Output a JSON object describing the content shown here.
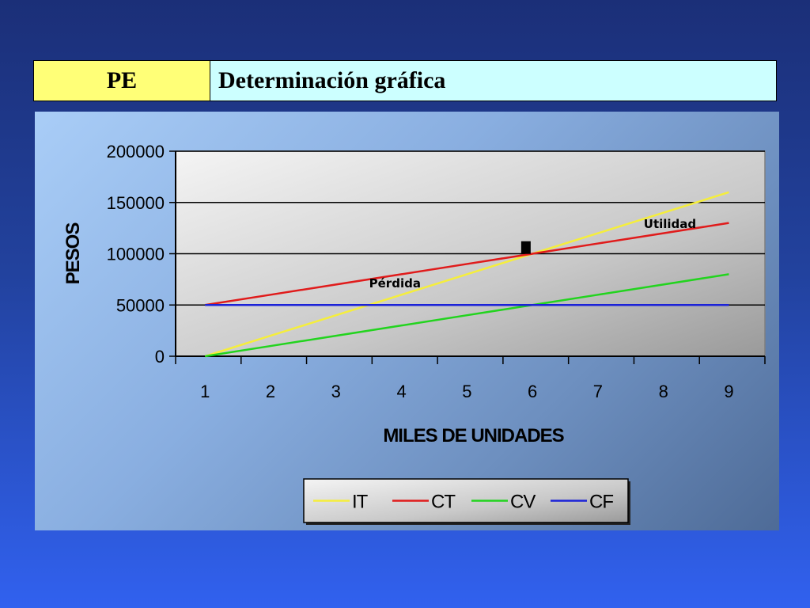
{
  "header": {
    "label": "PE",
    "title": "Determinación gráfica"
  },
  "chart_data": {
    "type": "line",
    "x": [
      1,
      2,
      3,
      4,
      5,
      6,
      7,
      8,
      9
    ],
    "series": [
      {
        "name": "IT",
        "color": "#f5ee3c",
        "values": [
          0,
          20000,
          40000,
          60000,
          80000,
          100000,
          120000,
          140000,
          160000
        ]
      },
      {
        "name": "CT",
        "color": "#e01b1b",
        "values": [
          50000,
          60000,
          70000,
          80000,
          90000,
          100000,
          110000,
          120000,
          130000
        ]
      },
      {
        "name": "CV",
        "color": "#22d41e",
        "values": [
          0,
          10000,
          20000,
          30000,
          40000,
          50000,
          60000,
          70000,
          80000
        ]
      },
      {
        "name": "CF",
        "color": "#1b22d8",
        "values": [
          50000,
          50000,
          50000,
          50000,
          50000,
          50000,
          50000,
          50000,
          50000
        ]
      }
    ],
    "xlabel": "MILES DE UNIDADES",
    "ylabel": "PESOS",
    "ylim": [
      0,
      200000
    ],
    "yticks": [
      "0",
      "50000",
      "100000",
      "150000",
      "200000"
    ],
    "xticks": [
      "1",
      "2",
      "3",
      "4",
      "5",
      "6",
      "7",
      "8",
      "9"
    ],
    "annotations": [
      {
        "text": "Pérdida",
        "x": 3.9,
        "y": 67000
      },
      {
        "text": "Utilidad",
        "x": 8.1,
        "y": 125000
      }
    ],
    "marker": {
      "x": 5.9,
      "y": 106000
    },
    "grid": true,
    "legend_position": "bottom"
  }
}
